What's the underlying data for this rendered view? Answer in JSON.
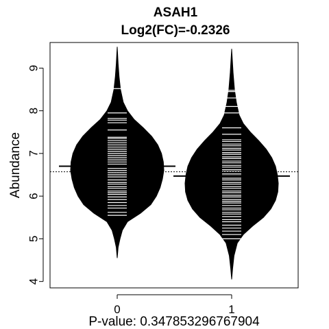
{
  "chart_data": {
    "type": "beanplot",
    "title": "ASAH1",
    "subtitle": "Log2(FC)=-0.2326",
    "xlabel": "P-value: 0.347853296767904",
    "ylabel": "Abundance",
    "ylim": [
      3.85,
      9.6
    ],
    "yticks": [
      4,
      5,
      6,
      7,
      8,
      9
    ],
    "categories": [
      "0",
      "1"
    ],
    "overall_mean": 6.57,
    "group_means": [
      6.7,
      6.47
    ],
    "beans": [
      {
        "category": "0",
        "mean": 6.7,
        "density": [
          [
            4.55,
            0.0
          ],
          [
            4.8,
            0.02
          ],
          [
            5.0,
            0.06
          ],
          [
            5.2,
            0.11
          ],
          [
            5.4,
            0.22
          ],
          [
            5.6,
            0.5
          ],
          [
            5.8,
            0.72
          ],
          [
            6.0,
            0.84
          ],
          [
            6.2,
            0.92
          ],
          [
            6.4,
            0.97
          ],
          [
            6.6,
            1.0
          ],
          [
            6.8,
            0.99
          ],
          [
            7.0,
            0.95
          ],
          [
            7.2,
            0.87
          ],
          [
            7.4,
            0.74
          ],
          [
            7.6,
            0.56
          ],
          [
            7.8,
            0.36
          ],
          [
            8.0,
            0.22
          ],
          [
            8.2,
            0.13
          ],
          [
            8.5,
            0.07
          ],
          [
            8.8,
            0.04
          ],
          [
            9.1,
            0.02
          ],
          [
            9.5,
            0.0
          ]
        ],
        "observations": [
          5.55,
          5.62,
          5.72,
          5.78,
          5.85,
          5.92,
          5.98,
          6.04,
          6.08,
          6.12,
          6.18,
          6.22,
          6.28,
          6.32,
          6.38,
          6.45,
          6.5,
          6.55,
          6.6,
          6.65,
          6.7,
          6.75,
          6.8,
          6.85,
          6.9,
          6.95,
          7.0,
          7.05,
          7.1,
          7.15,
          7.2,
          7.25,
          7.3,
          7.35,
          7.38,
          7.55,
          7.72,
          7.78,
          7.82,
          7.95,
          8.52
        ]
      },
      {
        "category": "1",
        "mean": 6.47,
        "density": [
          [
            4.05,
            0.0
          ],
          [
            4.3,
            0.02
          ],
          [
            4.6,
            0.05
          ],
          [
            4.9,
            0.12
          ],
          [
            5.1,
            0.25
          ],
          [
            5.3,
            0.45
          ],
          [
            5.5,
            0.68
          ],
          [
            5.7,
            0.84
          ],
          [
            5.9,
            0.94
          ],
          [
            6.1,
            0.99
          ],
          [
            6.3,
            1.0
          ],
          [
            6.5,
            0.98
          ],
          [
            6.7,
            0.94
          ],
          [
            6.9,
            0.86
          ],
          [
            7.1,
            0.74
          ],
          [
            7.3,
            0.58
          ],
          [
            7.5,
            0.4
          ],
          [
            7.7,
            0.25
          ],
          [
            7.9,
            0.16
          ],
          [
            8.2,
            0.1
          ],
          [
            8.5,
            0.06
          ],
          [
            8.9,
            0.03
          ],
          [
            9.45,
            0.0
          ]
        ],
        "observations": [
          5.0,
          5.1,
          5.18,
          5.25,
          5.32,
          5.4,
          5.45,
          5.52,
          5.58,
          5.62,
          5.68,
          5.72,
          5.78,
          5.84,
          5.88,
          5.92,
          5.98,
          6.02,
          6.08,
          6.12,
          6.18,
          6.22,
          6.28,
          6.32,
          6.38,
          6.42,
          6.48,
          6.52,
          6.58,
          6.62,
          6.68,
          6.72,
          6.78,
          6.82,
          6.88,
          6.92,
          6.98,
          7.02,
          7.08,
          7.12,
          7.18,
          7.22,
          7.28,
          7.32,
          7.45,
          7.6,
          7.95,
          8.1,
          8.3,
          8.45,
          8.48
        ]
      }
    ]
  }
}
